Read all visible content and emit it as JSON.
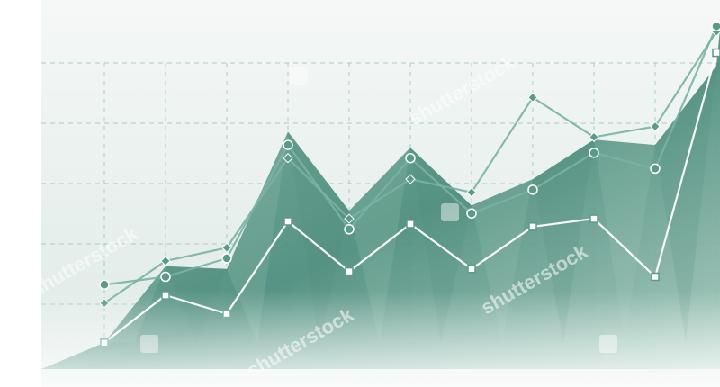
{
  "chart_data": {
    "type": "area",
    "x": [
      1,
      2,
      3,
      4,
      5,
      6,
      7,
      8,
      9,
      10,
      11
    ],
    "series": [
      {
        "style": "diamond-line",
        "values": [
          2.5,
          4.1,
          4.6,
          8.0,
          5.7,
          7.2,
          6.7,
          10.3,
          8.8,
          9.2,
          12.8
        ]
      },
      {
        "style": "circle-line",
        "values": [
          3.2,
          3.5,
          4.2,
          8.5,
          5.3,
          8.0,
          5.9,
          6.8,
          8.2,
          7.6,
          13.0
        ]
      },
      {
        "style": "square-line",
        "values": [
          1.0,
          2.8,
          2.1,
          5.6,
          3.7,
          5.5,
          3.8,
          5.4,
          5.7,
          3.5,
          12.0
        ]
      },
      {
        "style": "filled-area",
        "values": [
          1.0,
          3.9,
          3.8,
          9.0,
          6.0,
          8.4,
          6.2,
          7.2,
          8.7,
          8.5,
          11.5
        ]
      }
    ],
    "ylim": [
      0,
      14
    ],
    "grid": true,
    "legend": "none",
    "colors": {
      "area_dark": "#4b8c7c",
      "area_mid": "#76ab9c",
      "area_light": "#a9cbbf",
      "line": "#7ab3a3",
      "line_light": "#ffffff",
      "marker_fill": "#5a9a89",
      "grid": "#8fbcb0",
      "background_top": "#f5f8f7",
      "background_bottom": "#dde9e5"
    }
  },
  "watermark": {
    "text": "shutterstock"
  }
}
